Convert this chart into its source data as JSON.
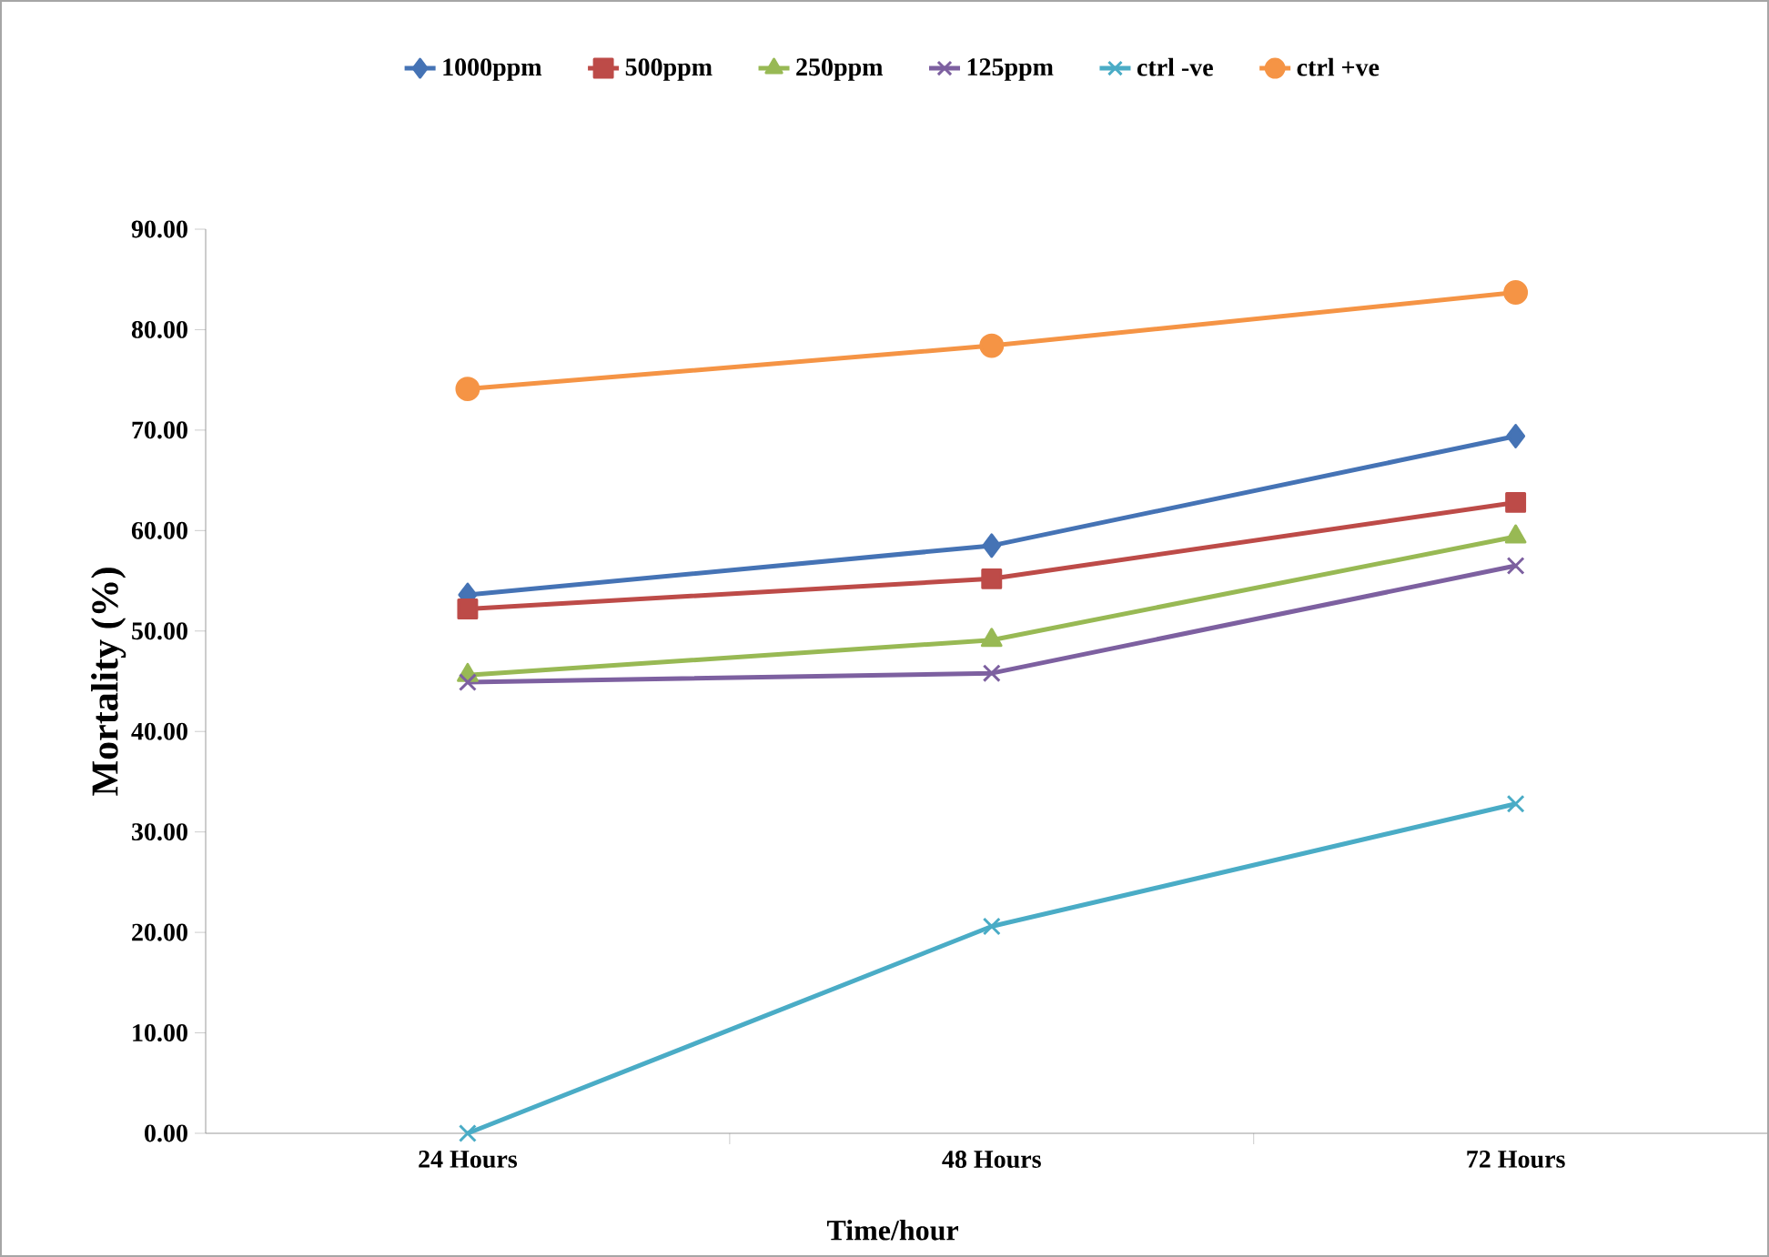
{
  "chart_data": {
    "type": "line",
    "xlabel": "Time/hour",
    "ylabel": "Mortality (%)",
    "categories": [
      "24 Hours",
      "48 Hours",
      "72 Hours"
    ],
    "ylim": [
      0,
      90
    ],
    "yticks": [
      {
        "value": 0,
        "label": "0.00"
      },
      {
        "value": 10,
        "label": "10.00"
      },
      {
        "value": 20,
        "label": "20.00"
      },
      {
        "value": 30,
        "label": "30.00"
      },
      {
        "value": 40,
        "label": "40.00"
      },
      {
        "value": 50,
        "label": "50.00"
      },
      {
        "value": 60,
        "label": "60.00"
      },
      {
        "value": 70,
        "label": "70.00"
      },
      {
        "value": 80,
        "label": "80.00"
      },
      {
        "value": 90,
        "label": "90.00"
      }
    ],
    "legend": "top",
    "grid": false,
    "series": [
      {
        "name": "1000ppm",
        "color": "#4573b5",
        "marker": "diamond",
        "values": [
          53.6,
          58.5,
          69.4
        ]
      },
      {
        "name": "500ppm",
        "color": "#bd4b48",
        "marker": "square",
        "values": [
          52.2,
          55.2,
          62.8
        ]
      },
      {
        "name": "250ppm",
        "color": "#98b954",
        "marker": "triangle",
        "values": [
          45.6,
          49.1,
          59.4
        ]
      },
      {
        "name": "125ppm",
        "color": "#7d60a0",
        "marker": "cross",
        "values": [
          44.9,
          45.8,
          56.5
        ]
      },
      {
        "name": "ctrl -ve",
        "color": "#4aacc6",
        "marker": "cross",
        "values": [
          0,
          20.6,
          32.8
        ]
      },
      {
        "name": "ctrl +ve",
        "color": "#f59445",
        "marker": "circle",
        "values": [
          74.1,
          78.4,
          83.7
        ]
      }
    ]
  }
}
